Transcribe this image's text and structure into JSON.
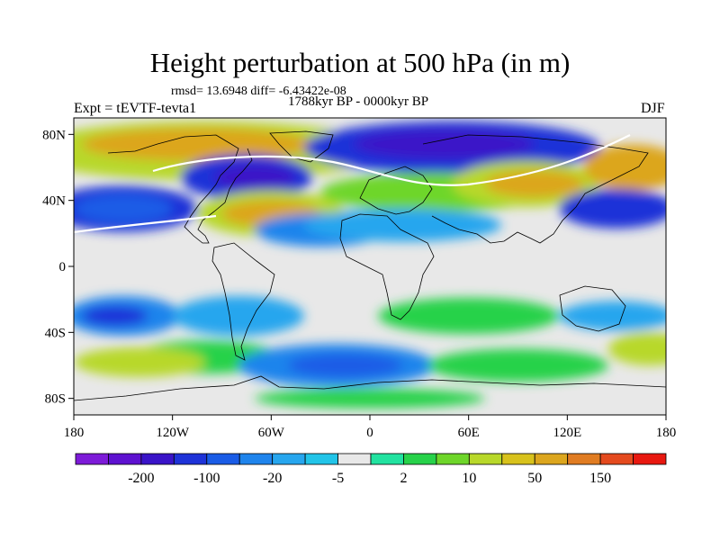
{
  "title": "Height perturbation at 500 hPa (in m)",
  "stats_line": "rmsd= 13.6948 diff= -6.43422e-08",
  "period": "1788kyr BP - 0000kyr BP",
  "experiment": "Expt = tEVTF-tevta1",
  "season": "DJF",
  "map": {
    "lat_ticks": [
      {
        "value": 80,
        "label": "80N"
      },
      {
        "value": 40,
        "label": "40N"
      },
      {
        "value": 0,
        "label": "0"
      },
      {
        "value": -40,
        "label": "40S"
      },
      {
        "value": -80,
        "label": "80S"
      }
    ],
    "lon_ticks": [
      {
        "value": -180,
        "label": "180"
      },
      {
        "value": -120,
        "label": "120W"
      },
      {
        "value": -60,
        "label": "60W"
      },
      {
        "value": 0,
        "label": "0"
      },
      {
        "value": 60,
        "label": "60E"
      },
      {
        "value": 120,
        "label": "120E"
      },
      {
        "value": 180,
        "label": "180"
      }
    ],
    "lon_range": [
      -180,
      180
    ],
    "lat_range": [
      -90,
      90
    ]
  },
  "colorbar": {
    "colors": [
      "#7d1bd8",
      "#5e12d0",
      "#3a14c8",
      "#1e33d8",
      "#1a5ce6",
      "#1f84ec",
      "#27a6ee",
      "#22c4e8",
      "#e8e8e8",
      "#22e2a0",
      "#27d24a",
      "#6ed62a",
      "#b8d82a",
      "#d8c21c",
      "#dca61e",
      "#e07c22",
      "#e44a1e",
      "#e81810"
    ],
    "labels": [
      {
        "boundary": 2,
        "text": "-200"
      },
      {
        "boundary": 4,
        "text": "-100"
      },
      {
        "boundary": 6,
        "text": "-20"
      },
      {
        "boundary": 8,
        "text": "-5"
      },
      {
        "boundary": 10,
        "text": "2"
      },
      {
        "boundary": 12,
        "text": "10"
      },
      {
        "boundary": 14,
        "text": "50"
      },
      {
        "boundary": 16,
        "text": "150"
      }
    ]
  },
  "field_blobs": [
    {
      "lon": -150,
      "lat": 35,
      "rx": 45,
      "ry": 14,
      "color": "#1e33d8"
    },
    {
      "lon": -150,
      "lat": 35,
      "rx": 30,
      "ry": 9,
      "color": "#1a5ce6"
    },
    {
      "lon": -100,
      "lat": 70,
      "rx": 110,
      "ry": 18,
      "color": "#b8d82a"
    },
    {
      "lon": -105,
      "lat": 74,
      "rx": 70,
      "ry": 10,
      "color": "#dca61e"
    },
    {
      "lon": -75,
      "lat": 54,
      "rx": 40,
      "ry": 14,
      "color": "#1e33d8"
    },
    {
      "lon": -70,
      "lat": 54,
      "rx": 25,
      "ry": 8,
      "color": "#3a14c8"
    },
    {
      "lon": -60,
      "lat": 32,
      "rx": 45,
      "ry": 14,
      "color": "#b8d82a"
    },
    {
      "lon": -60,
      "lat": 32,
      "rx": 30,
      "ry": 8,
      "color": "#dca61e"
    },
    {
      "lon": 50,
      "lat": 72,
      "rx": 90,
      "ry": 16,
      "color": "#1e33d8"
    },
    {
      "lon": 45,
      "lat": 74,
      "rx": 55,
      "ry": 9,
      "color": "#3a14c8"
    },
    {
      "lon": 40,
      "lat": 45,
      "rx": 70,
      "ry": 12,
      "color": "#6ed62a"
    },
    {
      "lon": 95,
      "lat": 50,
      "rx": 45,
      "ry": 14,
      "color": "#b8d82a"
    },
    {
      "lon": 100,
      "lat": 50,
      "rx": 30,
      "ry": 8,
      "color": "#dca61e"
    },
    {
      "lon": 160,
      "lat": 60,
      "rx": 30,
      "ry": 14,
      "color": "#dca61e"
    },
    {
      "lon": 150,
      "lat": 35,
      "rx": 35,
      "ry": 12,
      "color": "#1e33d8"
    },
    {
      "lon": -30,
      "lat": 22,
      "rx": 40,
      "ry": 10,
      "color": "#1f84ec"
    },
    {
      "lon": 20,
      "lat": 25,
      "rx": 60,
      "ry": 10,
      "color": "#27a6ee"
    },
    {
      "lon": -150,
      "lat": -30,
      "rx": 35,
      "ry": 12,
      "color": "#1f84ec"
    },
    {
      "lon": -155,
      "lat": -30,
      "rx": 20,
      "ry": 6,
      "color": "#1e33d8"
    },
    {
      "lon": -80,
      "lat": -30,
      "rx": 40,
      "ry": 12,
      "color": "#27a6ee"
    },
    {
      "lon": -100,
      "lat": -55,
      "rx": 45,
      "ry": 10,
      "color": "#27d24a"
    },
    {
      "lon": -140,
      "lat": -58,
      "rx": 40,
      "ry": 9,
      "color": "#b8d82a"
    },
    {
      "lon": -20,
      "lat": -60,
      "rx": 60,
      "ry": 13,
      "color": "#1f84ec"
    },
    {
      "lon": -15,
      "lat": -60,
      "rx": 35,
      "ry": 7,
      "color": "#1a5ce6"
    },
    {
      "lon": 60,
      "lat": -30,
      "rx": 55,
      "ry": 11,
      "color": "#27d24a"
    },
    {
      "lon": 90,
      "lat": -60,
      "rx": 55,
      "ry": 10,
      "color": "#27d24a"
    },
    {
      "lon": 150,
      "lat": -30,
      "rx": 35,
      "ry": 9,
      "color": "#27a6ee"
    },
    {
      "lon": 170,
      "lat": -50,
      "rx": 25,
      "ry": 10,
      "color": "#b8d82a"
    },
    {
      "lon": 0,
      "lat": -80,
      "rx": 70,
      "ry": 6,
      "color": "#27d24a"
    }
  ]
}
